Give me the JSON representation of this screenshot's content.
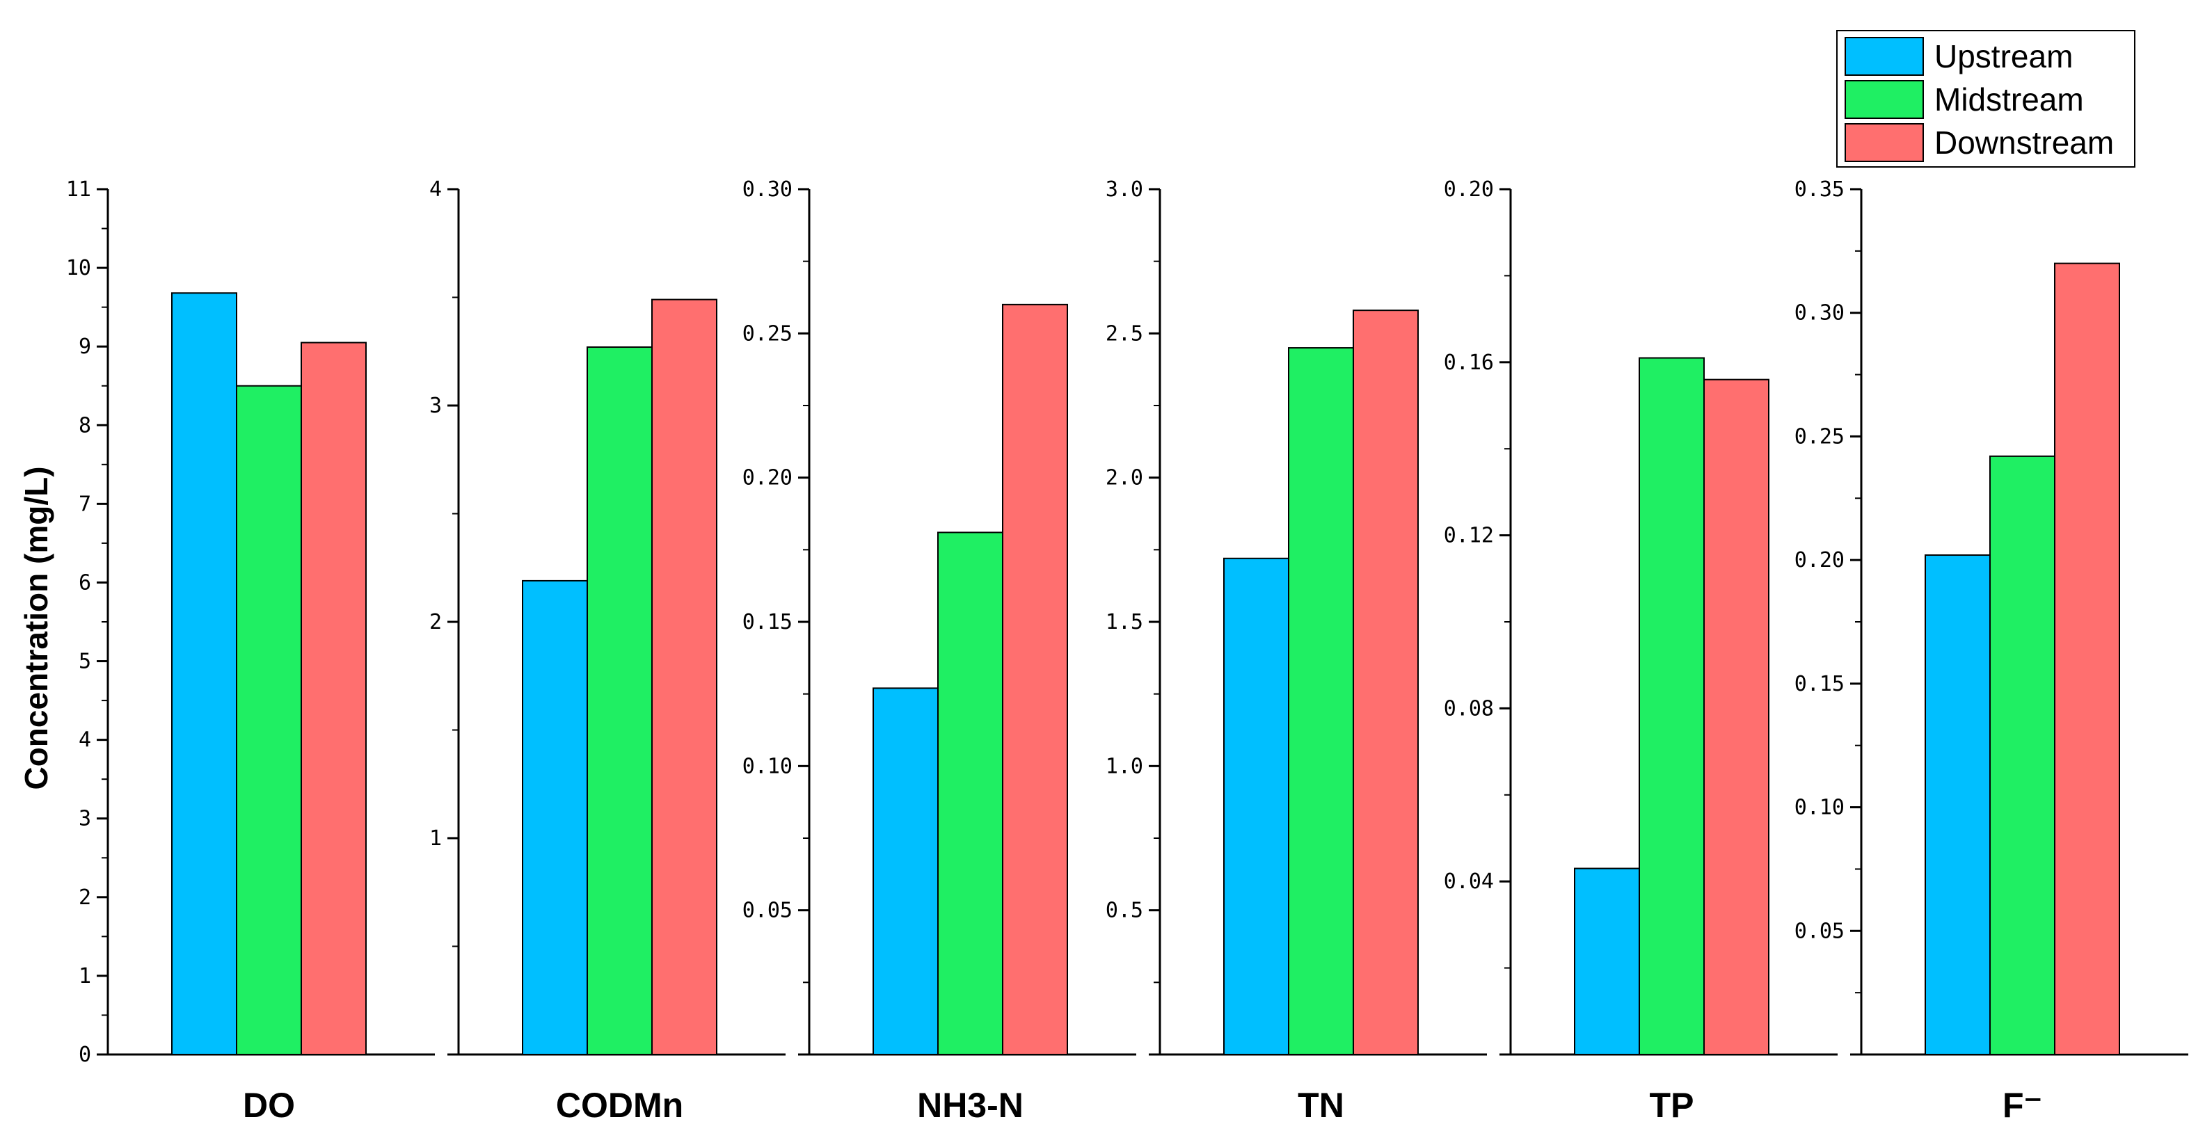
{
  "chart_data": {
    "type": "bar",
    "ylabel": "Concentration (mg/L)",
    "legend": {
      "placement": "top-right",
      "entries": [
        "Upstream",
        "Midstream",
        "Downstream"
      ]
    },
    "colors": {
      "Upstream": "#00BFFF",
      "Midstream": "#1FEF63",
      "Downstream": "#FF6F6F"
    },
    "panels": [
      {
        "category": "DO",
        "ylim": [
          0,
          11
        ],
        "ticks": [
          "0",
          "1",
          "2",
          "3",
          "4",
          "5",
          "6",
          "7",
          "8",
          "9",
          "10",
          "11"
        ],
        "values": {
          "Upstream": 9.68,
          "Midstream": 8.5,
          "Downstream": 9.05
        }
      },
      {
        "category": "CODMn",
        "ylim": [
          0,
          4
        ],
        "ticks": [
          "1",
          "2",
          "3",
          "4"
        ],
        "values": {
          "Upstream": 2.19,
          "Midstream": 3.27,
          "Downstream": 3.49
        }
      },
      {
        "category": "NH3-N",
        "ylim": [
          0,
          0.3
        ],
        "ticks": [
          "0.05",
          "0.10",
          "0.15",
          "0.20",
          "0.25",
          "0.30"
        ],
        "values": {
          "Upstream": 0.127,
          "Midstream": 0.181,
          "Downstream": 0.26
        }
      },
      {
        "category": "TN",
        "ylim": [
          0,
          3.0
        ],
        "ticks": [
          "0.5",
          "1.0",
          "1.5",
          "2.0",
          "2.5",
          "3.0"
        ],
        "values": {
          "Upstream": 1.72,
          "Midstream": 2.45,
          "Downstream": 2.58
        }
      },
      {
        "category": "TP",
        "ylim": [
          0,
          0.2
        ],
        "ticks": [
          "0.04",
          "0.08",
          "0.12",
          "0.16",
          "0.20"
        ],
        "values": {
          "Upstream": 0.043,
          "Midstream": 0.161,
          "Downstream": 0.156
        }
      },
      {
        "category": "F⁻",
        "ylim": [
          0,
          0.35
        ],
        "ticks": [
          "0.05",
          "0.10",
          "0.15",
          "0.20",
          "0.25",
          "0.30",
          "0.35"
        ],
        "values": {
          "Upstream": 0.202,
          "Midstream": 0.242,
          "Downstream": 0.32
        }
      }
    ]
  }
}
